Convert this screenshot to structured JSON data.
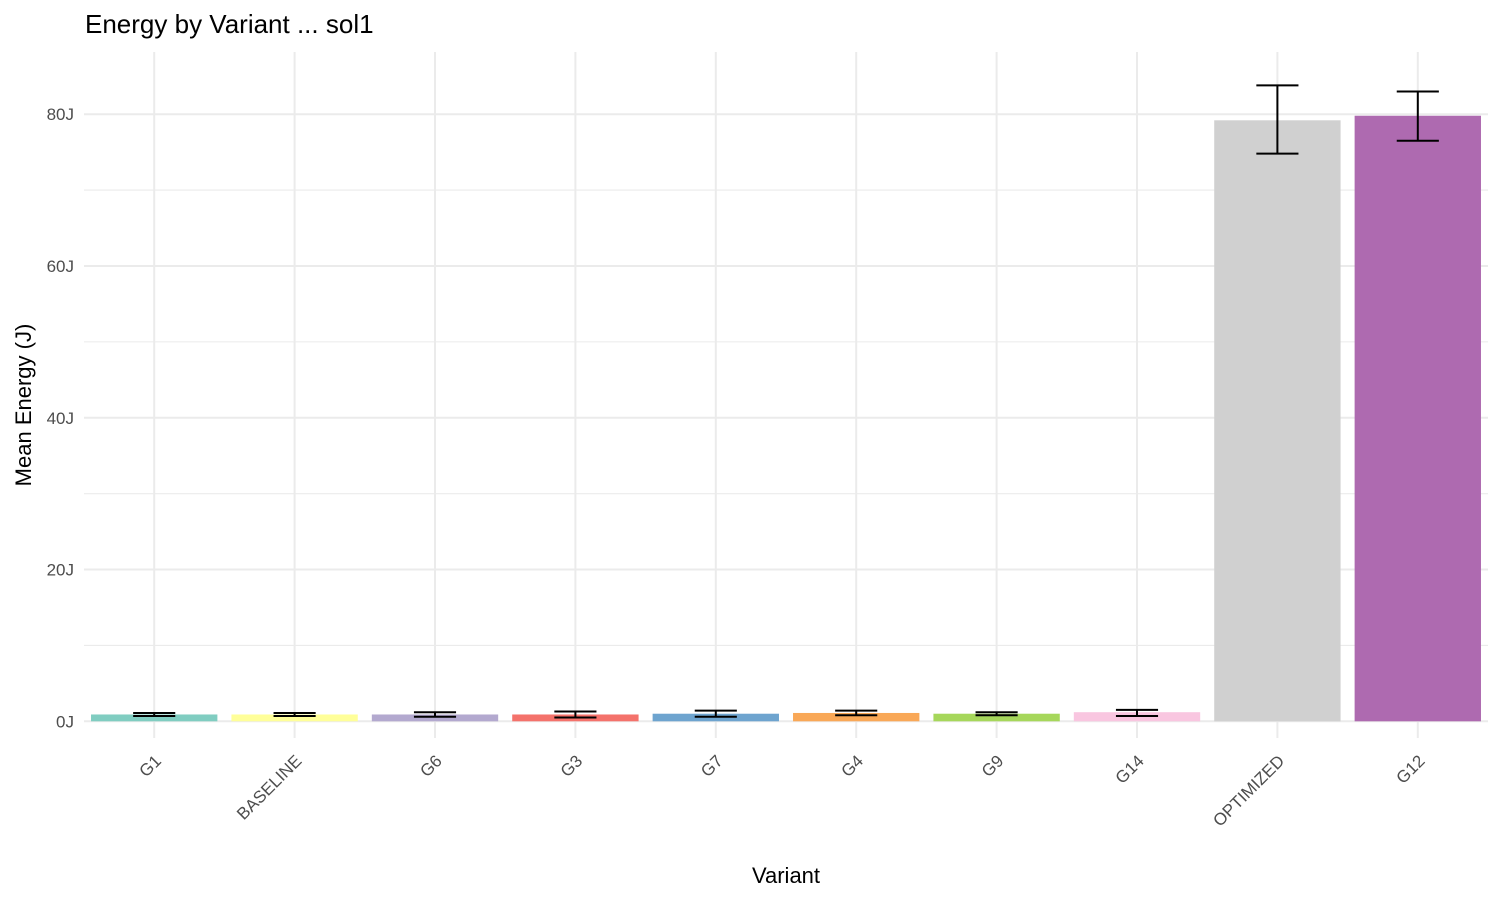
{
  "chart_data": {
    "type": "bar",
    "title": "Energy by Variant ... sol1",
    "xlabel": "Variant",
    "ylabel": "Mean Energy (J)",
    "ylim": [
      -2.2,
      88.2
    ],
    "yticks": [
      0,
      20,
      40,
      60,
      80
    ],
    "ytick_labels": [
      "0J",
      "20J",
      "40J",
      "60J",
      "80J"
    ],
    "grid": true,
    "legend": "none",
    "categories": [
      "G1",
      "BASELINE",
      "G6",
      "G3",
      "G7",
      "G4",
      "G9",
      "G14",
      "OPTIMIZED",
      "G12"
    ],
    "values": [
      0.9,
      0.9,
      0.9,
      0.9,
      1.0,
      1.1,
      1.0,
      1.2,
      79.2,
      79.8
    ],
    "err_low": [
      0.7,
      0.7,
      0.6,
      0.5,
      0.6,
      0.8,
      0.8,
      0.7,
      74.8,
      76.5
    ],
    "err_high": [
      1.1,
      1.1,
      1.2,
      1.3,
      1.4,
      1.4,
      1.2,
      1.5,
      83.8,
      83.0
    ],
    "colors": [
      "#80cdc1",
      "#ffff99",
      "#b3a9cf",
      "#f4726b",
      "#6ea4cf",
      "#f9a857",
      "#a6d75b",
      "#f9c6e0",
      "#d0d0d0",
      "#ae6ab0"
    ]
  }
}
